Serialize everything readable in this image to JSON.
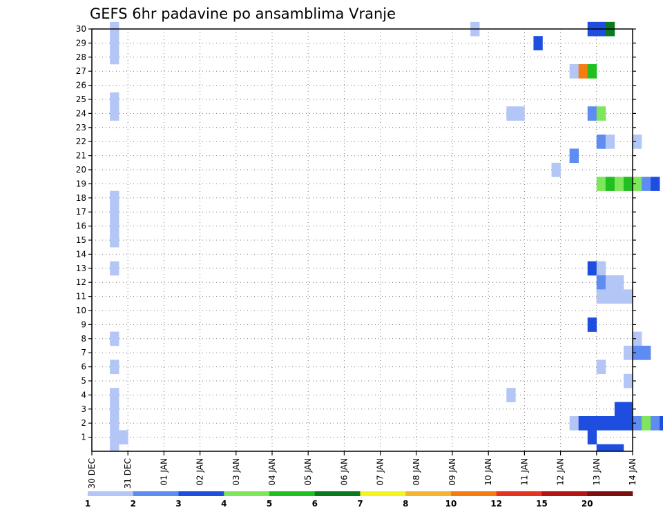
{
  "chart_data": {
    "type": "heatmap",
    "title": "GEFS 6hr padavine po ansamblima Vranje",
    "xlabel": "",
    "ylabel": "",
    "x_ticks": [
      "30 DEC",
      "31 DEC",
      "01 JAN",
      "02 JAN",
      "03 JAN",
      "04 JAN",
      "05 JAN",
      "06 JAN",
      "07 JAN",
      "08 JAN",
      "09 JAN",
      "10 JAN",
      "11 JAN",
      "12 JAN",
      "13 JAN",
      "14 JAN"
    ],
    "y_ticks": [
      "1",
      "2",
      "3",
      "4",
      "5",
      "6",
      "7",
      "8",
      "9",
      "10",
      "11",
      "12",
      "13",
      "14",
      "15",
      "16",
      "17",
      "18",
      "19",
      "20",
      "21",
      "22",
      "23",
      "24",
      "25",
      "26",
      "27",
      "28",
      "29",
      "30"
    ],
    "time_steps_per_day": 4,
    "legend": {
      "labels": [
        "1",
        "2",
        "3",
        "4",
        "5",
        "6",
        "7",
        "8",
        "10",
        "12",
        "15",
        "20"
      ],
      "colors": [
        "#b4c6f5",
        "#5f8cf0",
        "#1e4ee0",
        "#7de65a",
        "#20c020",
        "#0b7a1e",
        "#f5f51e",
        "#f5b432",
        "#f57d0f",
        "#e6321e",
        "#b41414",
        "#7d0f0f"
      ]
    },
    "cells": [
      [
        2,
        30,
        1
      ],
      [
        42,
        30,
        1
      ],
      [
        55,
        30,
        3
      ],
      [
        56,
        30,
        3
      ],
      [
        57,
        30,
        6
      ],
      [
        2,
        29,
        1
      ],
      [
        49,
        29,
        3
      ],
      [
        100,
        29,
        1
      ],
      [
        101,
        29,
        4
      ],
      [
        104,
        29,
        1
      ],
      [
        2,
        28,
        1
      ],
      [
        115,
        28,
        8
      ],
      [
        116,
        28,
        3
      ],
      [
        117,
        28,
        2
      ],
      [
        53,
        27,
        1
      ],
      [
        54,
        27,
        9
      ],
      [
        55,
        27,
        5
      ],
      [
        117,
        27,
        1
      ],
      [
        84,
        26,
        1
      ],
      [
        85,
        26,
        10
      ],
      [
        98,
        26,
        1
      ],
      [
        99,
        26,
        5
      ],
      [
        100,
        26,
        4
      ],
      [
        109,
        26,
        1
      ],
      [
        2,
        25,
        1
      ],
      [
        64,
        25,
        1
      ],
      [
        103,
        25,
        1
      ],
      [
        107,
        25,
        3
      ],
      [
        108,
        25,
        6
      ],
      [
        2,
        24,
        1
      ],
      [
        46,
        24,
        1
      ],
      [
        47,
        24,
        1
      ],
      [
        55,
        24,
        2
      ],
      [
        56,
        24,
        4
      ],
      [
        93,
        24,
        1
      ],
      [
        56,
        22,
        2
      ],
      [
        57,
        22,
        1
      ],
      [
        60,
        22,
        1
      ],
      [
        101,
        22,
        1
      ],
      [
        102,
        22,
        1
      ],
      [
        103,
        22,
        1
      ],
      [
        104,
        22,
        6
      ],
      [
        105,
        22,
        4
      ],
      [
        117,
        22,
        1
      ],
      [
        118,
        22,
        1
      ],
      [
        53,
        21,
        2
      ],
      [
        102,
        21,
        3
      ],
      [
        103,
        21,
        3
      ],
      [
        104,
        21,
        3
      ],
      [
        105,
        21,
        3
      ],
      [
        106,
        21,
        3
      ],
      [
        107,
        21,
        3
      ],
      [
        108,
        21,
        3
      ],
      [
        109,
        21,
        3
      ],
      [
        110,
        21,
        2
      ],
      [
        51,
        20,
        1
      ],
      [
        98,
        20,
        1
      ],
      [
        99,
        20,
        3
      ],
      [
        100,
        20,
        2
      ],
      [
        101,
        20,
        2
      ],
      [
        102,
        20,
        2
      ],
      [
        103,
        20,
        2
      ],
      [
        104,
        20,
        2
      ],
      [
        105,
        20,
        2
      ],
      [
        114,
        20,
        1
      ],
      [
        98,
        19,
        1
      ],
      [
        99,
        19,
        3
      ],
      [
        100,
        19,
        1
      ],
      [
        101,
        19,
        2
      ],
      [
        102,
        19,
        2
      ],
      [
        103,
        19,
        2
      ],
      [
        104,
        19,
        2
      ],
      [
        105,
        19,
        2
      ],
      [
        56,
        19,
        4
      ],
      [
        57,
        19,
        5
      ],
      [
        58,
        19,
        4
      ],
      [
        59,
        19,
        5
      ],
      [
        60,
        19,
        4
      ],
      [
        61,
        19,
        2
      ],
      [
        62,
        19,
        3
      ],
      [
        2,
        18,
        1
      ],
      [
        94,
        18,
        2
      ],
      [
        95,
        18,
        3
      ],
      [
        2,
        17,
        1
      ],
      [
        94,
        17,
        2
      ],
      [
        95,
        17,
        3
      ],
      [
        2,
        16,
        1
      ],
      [
        66,
        16,
        1
      ],
      [
        94,
        16,
        5
      ],
      [
        95,
        16,
        7
      ],
      [
        96,
        16,
        4
      ],
      [
        102,
        16,
        1
      ],
      [
        112,
        16,
        1
      ],
      [
        2,
        15,
        1
      ],
      [
        66,
        15,
        1
      ],
      [
        94,
        15,
        5
      ],
      [
        95,
        15,
        7
      ],
      [
        96,
        15,
        4
      ],
      [
        102,
        15,
        1
      ],
      [
        112,
        15,
        1
      ],
      [
        113,
        14,
        1
      ],
      [
        2,
        13,
        1
      ],
      [
        55,
        13,
        3
      ],
      [
        56,
        13,
        1
      ],
      [
        85,
        13,
        2
      ],
      [
        56,
        12,
        2
      ],
      [
        57,
        12,
        1
      ],
      [
        58,
        12,
        1
      ],
      [
        56,
        11,
        1
      ],
      [
        57,
        11,
        1
      ],
      [
        58,
        11,
        1
      ],
      [
        59,
        11,
        1
      ],
      [
        111,
        10,
        4
      ],
      [
        112,
        10,
        1
      ],
      [
        55,
        9,
        3
      ],
      [
        67,
        9,
        1
      ],
      [
        102,
        9,
        2
      ],
      [
        103,
        9,
        2
      ],
      [
        104,
        9,
        2
      ],
      [
        105,
        9,
        2
      ],
      [
        106,
        9,
        1
      ],
      [
        2,
        8,
        1
      ],
      [
        60,
        8,
        1
      ],
      [
        59,
        7,
        1
      ],
      [
        60,
        7,
        2
      ],
      [
        61,
        7,
        2
      ],
      [
        113,
        7,
        1
      ],
      [
        118,
        7,
        2
      ],
      [
        2,
        6,
        1
      ],
      [
        56,
        6,
        1
      ],
      [
        59,
        5,
        1
      ],
      [
        91,
        5,
        8
      ],
      [
        92,
        5,
        5
      ],
      [
        2,
        4,
        1
      ],
      [
        46,
        4,
        1
      ],
      [
        111,
        4,
        1
      ],
      [
        112,
        4,
        8
      ],
      [
        113,
        4,
        2
      ],
      [
        116,
        4,
        3
      ],
      [
        117,
        4,
        3
      ],
      [
        118,
        4,
        3
      ],
      [
        2,
        3,
        1
      ],
      [
        58,
        3,
        3
      ],
      [
        59,
        3,
        3
      ],
      [
        81,
        3,
        2
      ],
      [
        90,
        3,
        1
      ],
      [
        101,
        3,
        2
      ],
      [
        102,
        3,
        3
      ],
      [
        2,
        2,
        1
      ],
      [
        53,
        2,
        1
      ],
      [
        54,
        2,
        3
      ],
      [
        55,
        2,
        3
      ],
      [
        56,
        2,
        3
      ],
      [
        57,
        2,
        3
      ],
      [
        58,
        2,
        3
      ],
      [
        59,
        2,
        3
      ],
      [
        60,
        2,
        2
      ],
      [
        61,
        2,
        4
      ],
      [
        62,
        2,
        2
      ],
      [
        63,
        2,
        3
      ],
      [
        102,
        2,
        1
      ],
      [
        103,
        2,
        1
      ],
      [
        106,
        2,
        1
      ],
      [
        107,
        2,
        6
      ],
      [
        118,
        2,
        2
      ],
      [
        2,
        1,
        1
      ],
      [
        3,
        1,
        1
      ],
      [
        55,
        1,
        3
      ],
      [
        106,
        1,
        2
      ],
      [
        107,
        1,
        1
      ],
      [
        108,
        1,
        2
      ],
      [
        109,
        1,
        1
      ],
      [
        110,
        1,
        2
      ],
      [
        111,
        1,
        2
      ],
      [
        112,
        1,
        2
      ],
      [
        113,
        1,
        2
      ],
      [
        114,
        1,
        4
      ],
      [
        118,
        1,
        2
      ],
      [
        2,
        0,
        1
      ],
      [
        56,
        0,
        3
      ],
      [
        57,
        0,
        3
      ],
      [
        58,
        0,
        3
      ],
      [
        89,
        0,
        8
      ],
      [
        90,
        0,
        8
      ],
      [
        91,
        0,
        9
      ]
    ]
  }
}
